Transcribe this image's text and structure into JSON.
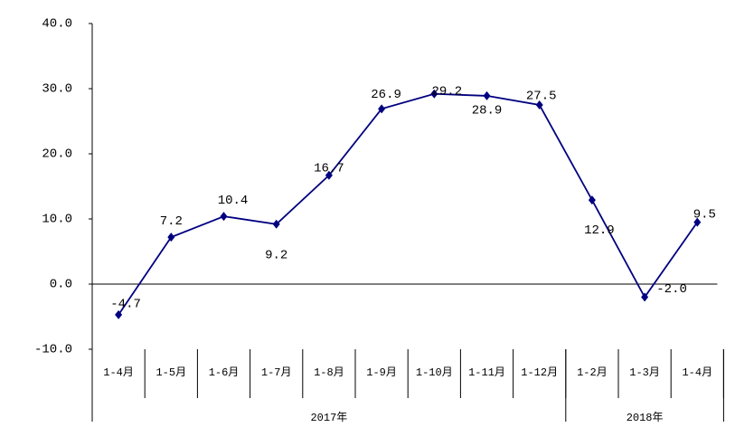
{
  "chart_data": {
    "type": "line",
    "categories": [
      "1-4月",
      "1-5月",
      "1-6月",
      "1-7月",
      "1-8月",
      "1-9月",
      "1-10月",
      "1-11月",
      "1-12月",
      "1-2月",
      "1-3月",
      "1-4月"
    ],
    "groups": [
      {
        "label": "2017年",
        "count": 9
      },
      {
        "label": "2018年",
        "count": 3
      }
    ],
    "series": [
      {
        "color": "#000080",
        "values": [
          -4.7,
          7.2,
          10.4,
          9.2,
          16.7,
          26.9,
          29.2,
          28.9,
          27.5,
          12.9,
          -2.0,
          9.5
        ],
        "value_labels": [
          "-4.7",
          "7.2",
          "10.4",
          "9.2",
          "16.7",
          "26.9",
          "29.2",
          "28.9",
          "27.5",
          "12.9",
          "-2.0",
          "9.5"
        ]
      }
    ],
    "ylim": [
      -10,
      40
    ],
    "yticks": [
      {
        "value": -10,
        "label": "-10.0"
      },
      {
        "value": 0,
        "label": "0.0"
      },
      {
        "value": 10,
        "label": "10.0"
      },
      {
        "value": 20,
        "label": "20.0"
      },
      {
        "value": 30,
        "label": "30.0"
      },
      {
        "value": 40,
        "label": "40.0"
      }
    ]
  }
}
